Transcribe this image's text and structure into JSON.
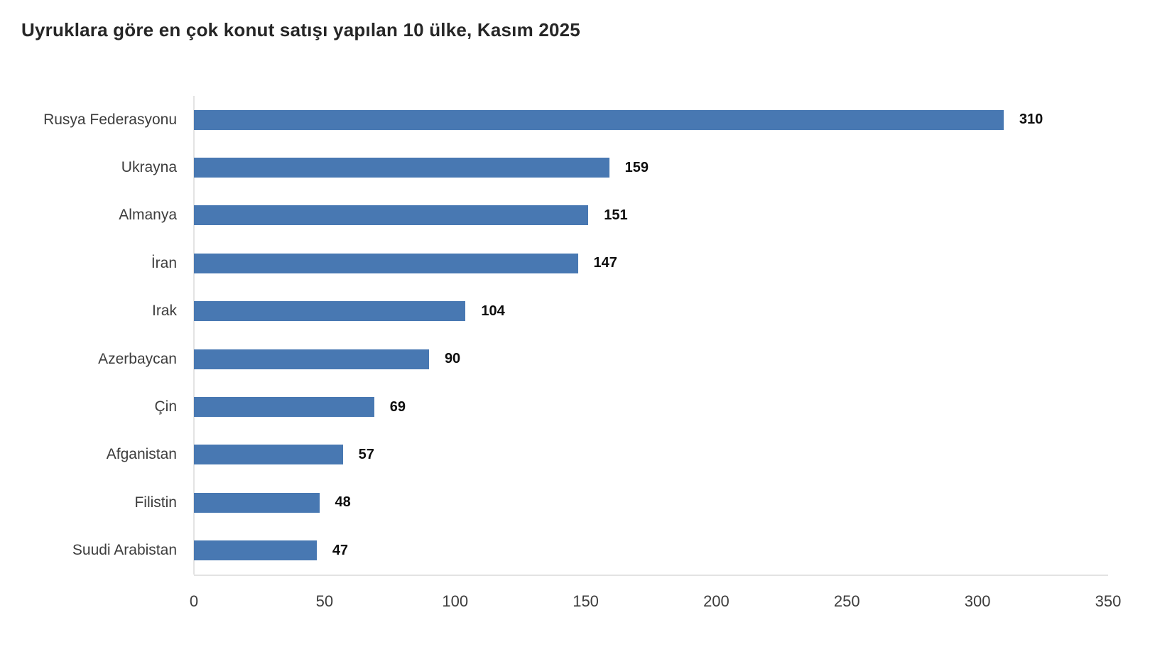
{
  "chart_data": {
    "type": "bar",
    "orientation": "horizontal",
    "title": "Uyruklara göre en çok konut satışı yapılan 10 ülke, Kasım 2025",
    "categories": [
      "Rusya Federasyonu",
      "Ukrayna",
      "Almanya",
      "İran",
      "Irak",
      "Azerbaycan",
      "Çin",
      "Afganistan",
      "Filistin",
      "Suudi Arabistan"
    ],
    "values": [
      310,
      159,
      151,
      147,
      104,
      90,
      69,
      57,
      48,
      47
    ],
    "xlabel": "",
    "ylabel": "",
    "xlim": [
      0,
      350
    ],
    "xticks": [
      0,
      50,
      100,
      150,
      200,
      250,
      300,
      350
    ],
    "value_labels": true,
    "grid": "off",
    "legend": "none",
    "colors": {
      "bar": "#4878b2",
      "axis_line": "#e3e3e3",
      "title_text": "#262626",
      "label_text": "#3d3d3d",
      "value_text": "#0d0d0d"
    }
  }
}
